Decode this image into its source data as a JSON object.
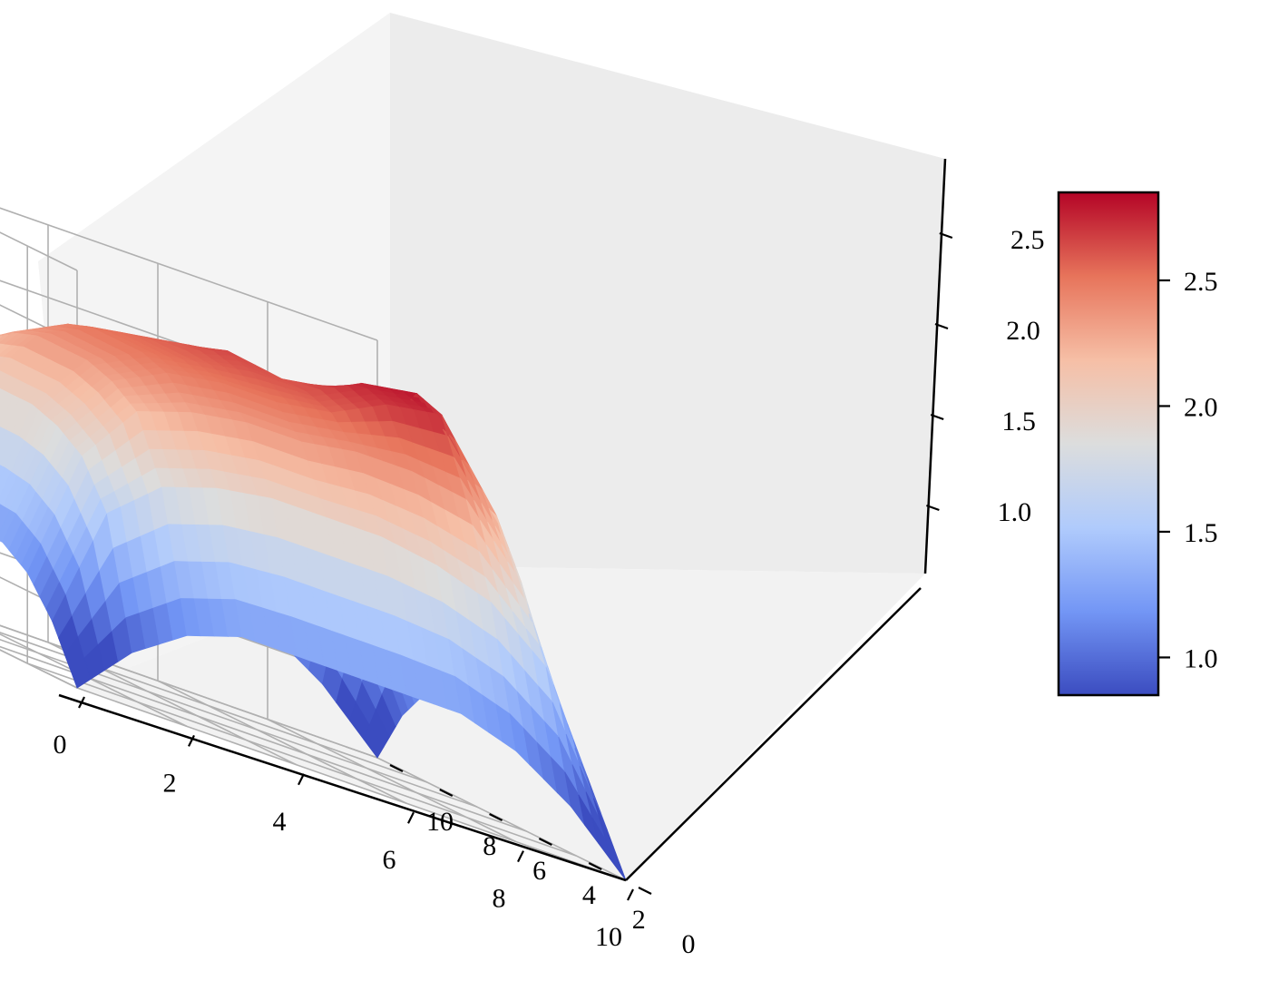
{
  "chart_data": {
    "type": "surface",
    "title": "",
    "xlabel": "",
    "ylabel": "",
    "zlabel": "",
    "xlim": [
      0,
      10
    ],
    "ylim": [
      0,
      10
    ],
    "zlim": [
      0.6,
      2.8
    ],
    "x_ticks": [
      "0",
      "2",
      "4",
      "6",
      "8",
      "10"
    ],
    "y_ticks": [
      "0",
      "2",
      "4",
      "6",
      "8",
      "10"
    ],
    "z_ticks": [
      "1.0",
      "1.5",
      "2.0",
      "2.5"
    ],
    "grid": true,
    "colormap": "coolwarm",
    "colormap_stops": [
      "#3b4cc0",
      "#7396f5",
      "#b0cbfc",
      "#dcdddd",
      "#f6bfa6",
      "#e7745b",
      "#b40426"
    ],
    "surface_grid": {
      "x": [
        0,
        1,
        2,
        3,
        4,
        5,
        6,
        7,
        8,
        9,
        10
      ],
      "y": [
        0,
        1,
        2,
        3,
        4,
        5,
        6,
        7,
        8,
        9,
        10
      ],
      "z": [
        [
          0.6,
          0.9,
          1.1,
          1.2,
          1.2,
          1.2,
          1.2,
          1.2,
          1.1,
          0.9,
          0.6
        ],
        [
          0.9,
          1.6,
          1.85,
          1.95,
          2.0,
          2.0,
          2.0,
          1.95,
          1.85,
          1.6,
          0.9
        ],
        [
          1.1,
          1.85,
          2.2,
          2.3,
          2.35,
          2.35,
          2.35,
          2.3,
          2.2,
          1.85,
          1.1
        ],
        [
          1.2,
          1.95,
          2.3,
          2.45,
          2.5,
          2.5,
          2.5,
          2.45,
          2.35,
          1.95,
          1.2
        ],
        [
          1.2,
          2.0,
          2.35,
          2.5,
          2.55,
          2.55,
          2.55,
          2.5,
          2.4,
          2.0,
          1.2
        ],
        [
          1.2,
          2.0,
          2.35,
          2.5,
          2.6,
          2.65,
          2.6,
          2.5,
          2.4,
          2.0,
          1.2
        ],
        [
          1.2,
          2.0,
          2.4,
          2.55,
          2.6,
          2.6,
          2.55,
          2.5,
          2.4,
          2.0,
          1.2
        ],
        [
          1.2,
          1.95,
          2.4,
          2.7,
          2.75,
          2.65,
          2.55,
          2.45,
          2.3,
          1.95,
          1.2
        ],
        [
          1.1,
          1.85,
          2.35,
          2.75,
          2.8,
          2.6,
          2.5,
          2.4,
          2.2,
          1.85,
          1.1
        ],
        [
          0.9,
          1.6,
          2.0,
          2.3,
          2.35,
          2.3,
          2.2,
          2.1,
          1.9,
          1.6,
          0.9
        ],
        [
          0.6,
          0.9,
          1.1,
          1.2,
          1.2,
          1.2,
          1.2,
          1.2,
          1.1,
          0.9,
          0.6
        ]
      ]
    },
    "colorbar": {
      "range": [
        0.85,
        2.85
      ],
      "ticks": [
        "1.0",
        "1.5",
        "2.0",
        "2.5"
      ]
    }
  }
}
